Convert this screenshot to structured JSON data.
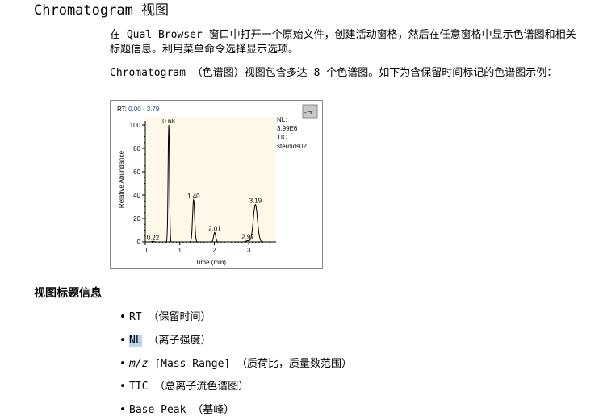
{
  "heading": "Chromatogram 视图",
  "para1": "在 Qual Browser 窗口中打开一个原始文件，创建活动窗格，然后在任意窗格中显示色谱图和相关标题信息。利用菜单命令选择显示选项。",
  "para2": "Chromatogram （色谱图）视图包含多达 8 个色谱图。如下为含保留时间标记的色谱图示例：",
  "section_title": "视图标题信息",
  "bullets": [
    {
      "prefix": "RT",
      "text": " （保留时间）"
    },
    {
      "prefix": "NL",
      "text": " （离子强度）"
    },
    {
      "prefix": "m/z",
      "text": " [Mass Range] （质荷比，质量数范围）"
    },
    {
      "prefix": "TIC",
      "text": " （总离子流色谱图）"
    },
    {
      "prefix": "Base Peak",
      "text": " （基峰）"
    }
  ],
  "chart_data": {
    "type": "line",
    "rt_label": "RT:",
    "rt_range": "0.00 - 3.79",
    "header_info": [
      "NL:",
      "3.99E6",
      "TIC",
      "steroids02"
    ],
    "xlabel": "Time (min)",
    "ylabel": "Relative Abundance",
    "xlim": [
      0,
      3.79
    ],
    "ylim": [
      0,
      100
    ],
    "xticks": [
      0,
      1,
      2,
      3
    ],
    "yticks": [
      0,
      20,
      40,
      60,
      80,
      100
    ],
    "peaks": [
      {
        "rt": 0.22,
        "label": "0.22",
        "value": 0.5
      },
      {
        "rt": 0.68,
        "label": "0.68",
        "value": 100
      },
      {
        "rt": 1.4,
        "label": "1.40",
        "value": 36
      },
      {
        "rt": 2.01,
        "label": "2.01",
        "value": 8
      },
      {
        "rt": 2.97,
        "label": "2.97",
        "value": 1
      },
      {
        "rt": 3.19,
        "label": "3.19",
        "value": 32
      }
    ],
    "colors": {
      "plot_bg": "#fdf8e8",
      "rt_range": "#1a3a8a",
      "trace": "#000000"
    }
  }
}
